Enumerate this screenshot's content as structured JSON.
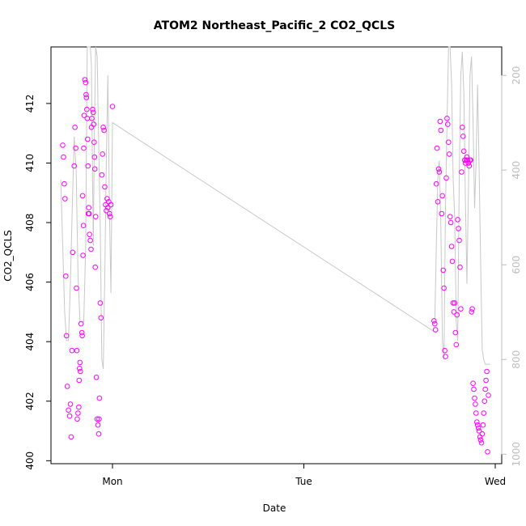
{
  "chart_data": {
    "type": "scatter",
    "title": "ATOM2 Northeast_Pacific_2 CO2_QCLS",
    "xlabel": "Date",
    "ylabel": "CO2_QCLS",
    "x_ticks": [
      "Mon",
      "Tue",
      "Wed"
    ],
    "x_range": [
      -0.145,
      1.02
    ],
    "y_ticks": [
      "400",
      "402",
      "404",
      "406",
      "408",
      "410",
      "412"
    ],
    "ylim": [
      399.9,
      413.9
    ],
    "y2_ticks": [
      "200",
      "400",
      "600",
      "800",
      "1000"
    ],
    "y2lim": [
      1020,
      140
    ],
    "grid": false,
    "colors": {
      "points": "#ff00ff",
      "line": "#c8c8c8",
      "right_axis": "#bdbdbd",
      "axis": "#000000"
    },
    "series": [
      {
        "type": "scatter",
        "x": [
          -0.13,
          -0.128,
          -0.126,
          -0.124,
          -0.122,
          -0.12,
          -0.118,
          -0.115,
          -0.112,
          -0.11,
          -0.108,
          -0.106,
          -0.104,
          -0.1,
          -0.098,
          -0.096,
          -0.094,
          -0.093,
          -0.092,
          -0.09,
          -0.088,
          -0.087,
          -0.086,
          -0.085,
          -0.084,
          -0.082,
          -0.08,
          -0.079,
          -0.078,
          -0.077,
          -0.076,
          -0.075,
          -0.074,
          -0.072,
          -0.07,
          -0.069,
          -0.068,
          -0.067,
          -0.066,
          -0.065,
          -0.064,
          -0.063,
          -0.062,
          -0.061,
          -0.06,
          -0.058,
          -0.056,
          -0.055,
          -0.054,
          -0.052,
          -0.05,
          -0.049,
          -0.048,
          -0.047,
          -0.046,
          -0.045,
          -0.044,
          -0.042,
          -0.04,
          -0.038,
          -0.036,
          -0.035,
          -0.034,
          -0.032,
          -0.03,
          -0.028,
          -0.026,
          -0.024,
          -0.022,
          -0.02,
          -0.018,
          -0.016,
          -0.014,
          -0.012,
          -0.01,
          -0.008,
          -0.006,
          -0.004,
          0.0,
          0.84,
          0.842,
          0.844,
          0.846,
          0.848,
          0.85,
          0.852,
          0.854,
          0.856,
          0.858,
          0.86,
          0.862,
          0.864,
          0.866,
          0.868,
          0.87,
          0.872,
          0.874,
          0.876,
          0.878,
          0.88,
          0.882,
          0.884,
          0.886,
          0.888,
          0.89,
          0.892,
          0.894,
          0.896,
          0.898,
          0.9,
          0.902,
          0.904,
          0.906,
          0.908,
          0.91,
          0.912,
          0.914,
          0.916,
          0.918,
          0.92,
          0.922,
          0.924,
          0.926,
          0.928,
          0.93,
          0.932,
          0.934,
          0.936,
          0.938,
          0.94,
          0.942,
          0.944,
          0.946,
          0.948,
          0.95,
          0.952,
          0.954,
          0.956,
          0.958,
          0.96,
          0.962,
          0.964,
          0.966,
          0.968,
          0.97,
          0.972,
          0.974,
          0.976,
          0.978,
          0.98,
          0.982
        ],
        "y": [
          410.6,
          410.2,
          409.3,
          408.8,
          406.2,
          404.2,
          402.5,
          401.7,
          401.5,
          401.9,
          400.8,
          403.7,
          407.0,
          409.9,
          411.2,
          410.5,
          405.8,
          403.7,
          401.4,
          401.6,
          401.8,
          402.7,
          403.1,
          403.3,
          403.0,
          404.6,
          404.3,
          404.2,
          408.9,
          406.9,
          407.9,
          410.5,
          411.6,
          412.8,
          412.7,
          412.3,
          412.2,
          411.8,
          411.5,
          410.8,
          409.9,
          408.3,
          408.5,
          408.3,
          407.6,
          407.4,
          407.1,
          411.2,
          411.5,
          411.8,
          411.7,
          411.3,
          410.7,
          410.2,
          409.8,
          406.5,
          408.2,
          402.8,
          401.4,
          401.2,
          400.9,
          401.4,
          402.1,
          405.3,
          404.8,
          409.6,
          410.3,
          411.2,
          411.1,
          409.2,
          408.6,
          408.4,
          408.8,
          408.5,
          408.7,
          408.3,
          408.2,
          408.6,
          411.9,
          404.7,
          404.6,
          404.4,
          409.3,
          410.5,
          408.7,
          409.8,
          409.7,
          411.4,
          411.1,
          408.3,
          408.9,
          406.4,
          405.8,
          403.7,
          403.5,
          409.5,
          411.5,
          411.3,
          410.7,
          410.3,
          408.2,
          408.0,
          407.2,
          406.7,
          405.3,
          405.0,
          405.3,
          404.3,
          403.9,
          404.9,
          408.1,
          407.8,
          407.4,
          406.5,
          405.1,
          409.7,
          411.2,
          410.9,
          410.4,
          410.1,
          410.0,
          410.1,
          410.2,
          410.1,
          410.0,
          409.9,
          410.1,
          410.1,
          405.0,
          405.1,
          402.6,
          402.4,
          402.1,
          401.9,
          401.6,
          401.3,
          401.2,
          401.1,
          401.0,
          400.8,
          400.7,
          400.6,
          400.9,
          401.2,
          401.6,
          402.0,
          402.4,
          402.7,
          403.0,
          400.3,
          402.2
        ]
      }
    ],
    "altitude_line": {
      "type": "line",
      "x": [
        -0.135,
        -0.13,
        -0.125,
        -0.12,
        -0.115,
        -0.11,
        -0.105,
        -0.1,
        -0.095,
        -0.09,
        -0.085,
        -0.08,
        -0.075,
        -0.07,
        -0.066,
        -0.062,
        -0.058,
        -0.055,
        -0.052,
        -0.05,
        -0.047,
        -0.044,
        -0.04,
        -0.036,
        -0.032,
        -0.028,
        -0.024,
        -0.02,
        -0.016,
        -0.012,
        -0.008,
        -0.004,
        0.0,
        0.838,
        0.842,
        0.846,
        0.85,
        0.854,
        0.858,
        0.862,
        0.866,
        0.87,
        0.874,
        0.878,
        0.882,
        0.886,
        0.89,
        0.894,
        0.898,
        0.902,
        0.906,
        0.91,
        0.914,
        0.918,
        0.922,
        0.926,
        0.93,
        0.934,
        0.938,
        0.942,
        0.946,
        0.95,
        0.954,
        0.958,
        0.962,
        0.966,
        0.97,
        0.974,
        0.978,
        0.982,
        0.986
      ],
      "y": [
        420,
        560,
        700,
        760,
        760,
        640,
        480,
        330,
        400,
        620,
        720,
        720,
        720,
        560,
        140,
        140,
        140,
        180,
        420,
        560,
        300,
        140,
        160,
        350,
        520,
        800,
        820,
        620,
        380,
        200,
        480,
        660,
        300,
        740,
        720,
        560,
        420,
        380,
        520,
        760,
        800,
        480,
        300,
        140,
        140,
        220,
        420,
        500,
        720,
        760,
        420,
        200,
        150,
        240,
        460,
        640,
        440,
        200,
        160,
        300,
        480,
        380,
        220,
        400,
        600,
        780,
        800,
        810,
        810,
        810,
        810
      ]
    }
  }
}
